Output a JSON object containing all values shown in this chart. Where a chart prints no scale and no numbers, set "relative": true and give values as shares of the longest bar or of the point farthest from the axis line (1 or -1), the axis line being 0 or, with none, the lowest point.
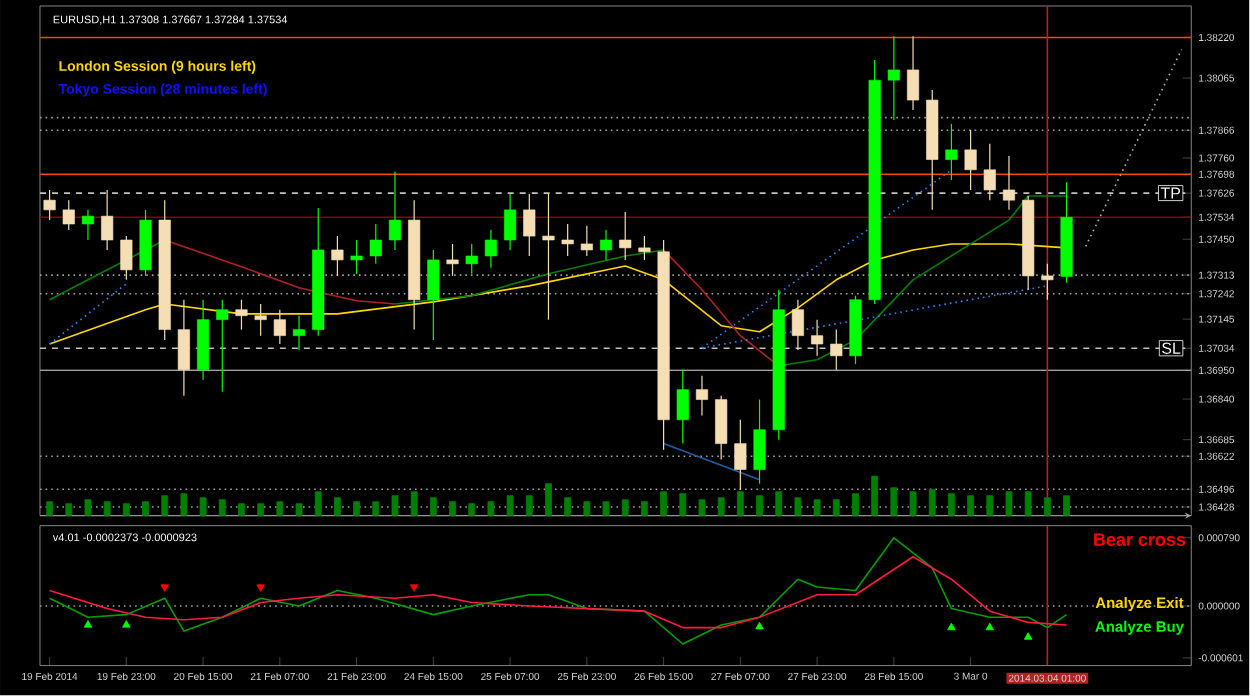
{
  "chart_data": [
    {
      "type": "candlestick",
      "title": "EURUSD,H1 1.37308 1.37667 1.37284 1.37534",
      "annotations": [
        "London Session (9 hours left)",
        "Tokyo Session (28 minutes left)"
      ],
      "categories": [
        "19 Feb 2014",
        null,
        null,
        null,
        "19 Feb 23:00",
        null,
        null,
        null,
        "20 Feb 15:00",
        null,
        null,
        null,
        "21 Feb 07:00",
        null,
        null,
        null,
        "21 Feb 23:00",
        null,
        null,
        null,
        "24 Feb 15:00",
        null,
        null,
        null,
        "25 Feb 07:00",
        null,
        null,
        null,
        "25 Feb 23:00",
        null,
        null,
        null,
        "26 Feb 15:00",
        null,
        null,
        null,
        "27 Feb 07:00",
        null,
        null,
        null,
        "27 Feb 23:00",
        null,
        null,
        null,
        "28 Feb 15:00",
        null,
        null,
        null,
        "3 Mar 0",
        null,
        null,
        null,
        "2014.03.04 01:00",
        null,
        null,
        null,
        null,
        null,
        null,
        null
      ],
      "ohlc": [
        [
          1.37599,
          1.37638,
          1.37523,
          1.37562
        ],
        [
          1.37562,
          1.37599,
          1.37485,
          1.37508
        ],
        [
          1.37508,
          1.37562,
          1.37447,
          1.37538
        ],
        [
          1.37538,
          1.37638,
          1.37409,
          1.37447
        ],
        [
          1.37447,
          1.37462,
          1.37295,
          1.37333
        ],
        [
          1.37333,
          1.37562,
          1.3731,
          1.37523
        ],
        [
          1.37523,
          1.37599,
          1.37065,
          1.37105
        ],
        [
          1.37105,
          1.37219,
          1.36853,
          1.36952
        ],
        [
          1.36952,
          1.37219,
          1.36914,
          1.37143
        ],
        [
          1.37143,
          1.37219,
          1.36868,
          1.37181
        ],
        [
          1.37181,
          1.37219,
          1.37105,
          1.37158
        ],
        [
          1.37158,
          1.37203,
          1.37082,
          1.37143
        ],
        [
          1.37143,
          1.37181,
          1.3705,
          1.37082
        ],
        [
          1.37082,
          1.37158,
          1.37027,
          1.37105
        ],
        [
          1.37105,
          1.37569,
          1.37082,
          1.37409
        ],
        [
          1.37409,
          1.37462,
          1.3731,
          1.37371
        ],
        [
          1.37371,
          1.37447,
          1.37318,
          1.37386
        ],
        [
          1.37386,
          1.37508,
          1.37356,
          1.37447
        ],
        [
          1.37447,
          1.37707,
          1.37409,
          1.37523
        ],
        [
          1.37523,
          1.37599,
          1.37105,
          1.37219
        ],
        [
          1.37219,
          1.37409,
          1.37065,
          1.37371
        ],
        [
          1.37371,
          1.37432,
          1.3731,
          1.37356
        ],
        [
          1.37356,
          1.37432,
          1.37318,
          1.37386
        ],
        [
          1.37386,
          1.37485,
          1.37341,
          1.37447
        ],
        [
          1.37447,
          1.37623,
          1.37409,
          1.37562
        ],
        [
          1.37562,
          1.37623,
          1.37386,
          1.37462
        ],
        [
          1.37462,
          1.37623,
          1.37143,
          1.37447
        ],
        [
          1.37447,
          1.37508,
          1.37386,
          1.37432
        ],
        [
          1.37432,
          1.37501,
          1.37386,
          1.37409
        ],
        [
          1.37409,
          1.37485,
          1.37371,
          1.37447
        ],
        [
          1.37447,
          1.37554,
          1.37371,
          1.37417
        ],
        [
          1.37417,
          1.37462,
          1.37371,
          1.37402
        ],
        [
          1.37402,
          1.37447,
          1.36647,
          1.36761
        ],
        [
          1.36761,
          1.36952,
          1.3667,
          1.36876
        ],
        [
          1.36876,
          1.36929,
          1.36777,
          1.36838
        ],
        [
          1.36838,
          1.36853,
          1.36609,
          1.3667
        ],
        [
          1.3667,
          1.36761,
          1.36494,
          1.36571
        ],
        [
          1.36571,
          1.36838,
          1.36517,
          1.36723
        ],
        [
          1.36723,
          1.37257,
          1.36685,
          1.37181
        ],
        [
          1.37181,
          1.37219,
          1.37027,
          1.37082
        ],
        [
          1.37082,
          1.37143,
          1.37005,
          1.3705
        ],
        [
          1.3705,
          1.37105,
          1.36952,
          1.37005
        ],
        [
          1.37005,
          1.37234,
          1.36974,
          1.37219
        ],
        [
          1.37219,
          1.38134,
          1.37203,
          1.38057
        ],
        [
          1.38057,
          1.38225,
          1.37905,
          1.38096
        ],
        [
          1.38096,
          1.38225,
          1.37943,
          1.37981
        ],
        [
          1.37981,
          1.38019,
          1.37562,
          1.37754
        ],
        [
          1.37754,
          1.3789,
          1.37676,
          1.37791
        ],
        [
          1.37791,
          1.37867,
          1.37638,
          1.37715
        ],
        [
          1.37715,
          1.37814,
          1.37599,
          1.37638
        ],
        [
          1.37638,
          1.37768,
          1.37562,
          1.37599
        ],
        [
          1.37599,
          1.37615,
          1.37257,
          1.3731
        ],
        [
          1.3731,
          1.37356,
          1.37219,
          1.37295
        ],
        [
          1.37308,
          1.37667,
          1.37284,
          1.37534
        ],
        null,
        null,
        null,
        null,
        null,
        null
      ],
      "series": [
        {
          "type": "line",
          "color": "#ffd700",
          "values": [
            1.3705,
            null,
            null,
            null,
            null,
            1.37181,
            1.37203,
            null,
            null,
            null,
            1.37165,
            null,
            null,
            null,
            null,
            1.37165,
            null,
            null,
            null,
            null,
            1.37211,
            null,
            null,
            null,
            null,
            1.37272,
            null,
            null,
            null,
            null,
            1.37348,
            null,
            1.37295,
            null,
            null,
            1.3712,
            null,
            1.37097,
            null,
            1.37188,
            null,
            1.37295,
            null,
            1.37371,
            null,
            1.37409,
            null,
            1.37432,
            null,
            null,
            1.37432,
            null,
            null,
            1.37417,
            null,
            null,
            null,
            null,
            null,
            null
          ]
        },
        {
          "type": "line",
          "color": "#008000",
          "values": [
            1.37219,
            null,
            1.37295,
            null,
            null,
            1.37409,
            1.37447,
            null,
            null,
            null,
            null,
            null,
            null,
            null,
            null,
            null,
            null,
            null,
            null,
            null,
            null,
            null,
            null,
            null,
            null,
            null,
            null,
            null,
            null,
            null,
            null,
            null,
            null,
            null,
            null,
            null,
            null,
            null,
            null,
            null,
            null,
            null,
            null,
            null,
            null,
            null,
            null,
            null,
            null,
            null,
            null,
            null,
            null,
            null,
            null,
            null,
            null,
            null,
            null,
            null
          ]
        },
        {
          "type": "line",
          "color": "#b22222",
          "values": [
            null,
            null,
            null,
            null,
            null,
            null,
            1.37447,
            null,
            null,
            null,
            1.37345,
            null,
            null,
            1.37265,
            null,
            null,
            1.37215,
            null,
            1.37203,
            null,
            null,
            null,
            null,
            null,
            null,
            null,
            null,
            null,
            null,
            null,
            null,
            null,
            null,
            null,
            null,
            null,
            null,
            null,
            null,
            null,
            null,
            null,
            null,
            null,
            null,
            null,
            null,
            null,
            null,
            null,
            null,
            null,
            null,
            null,
            null,
            null,
            null,
            null,
            null,
            null
          ]
        },
        {
          "type": "line",
          "color": "#008000",
          "values": [
            null,
            null,
            null,
            null,
            null,
            null,
            null,
            null,
            null,
            null,
            null,
            null,
            null,
            null,
            null,
            null,
            null,
            null,
            1.37203,
            null,
            null,
            null,
            1.37234,
            null,
            null,
            null,
            1.37318,
            null,
            null,
            null,
            1.37386,
            null,
            1.37409,
            null,
            null,
            null,
            null,
            null,
            null,
            null,
            null,
            null,
            null,
            null,
            null,
            null,
            null,
            null,
            null,
            null,
            null,
            null,
            null,
            null,
            null,
            null,
            null,
            null,
            null,
            null
          ]
        },
        {
          "type": "line",
          "color": "#b22222",
          "values": [
            null,
            null,
            null,
            null,
            null,
            null,
            null,
            null,
            null,
            null,
            null,
            null,
            null,
            null,
            null,
            null,
            null,
            null,
            null,
            null,
            null,
            null,
            null,
            null,
            null,
            null,
            null,
            null,
            null,
            null,
            null,
            null,
            1.37409,
            null,
            1.37257,
            null,
            1.37082,
            null,
            1.36967,
            null,
            null,
            null,
            null,
            null,
            null,
            null,
            null,
            null,
            null,
            null,
            null,
            null,
            null,
            null,
            null,
            null,
            null,
            null,
            null,
            null
          ]
        },
        {
          "type": "line",
          "color": "#008000",
          "values": [
            null,
            null,
            null,
            null,
            null,
            null,
            null,
            null,
            null,
            null,
            null,
            null,
            null,
            null,
            null,
            null,
            null,
            null,
            null,
            null,
            null,
            null,
            null,
            null,
            null,
            null,
            null,
            null,
            null,
            null,
            null,
            null,
            null,
            null,
            null,
            null,
            null,
            null,
            1.36967,
            null,
            1.3699,
            null,
            1.37066,
            null,
            null,
            1.37295,
            null,
            null,
            1.37432,
            null,
            1.37523,
            1.37615,
            null,
            1.37615,
            null,
            null,
            null,
            null,
            null,
            null
          ]
        },
        {
          "type": "line",
          "color": "#1e90ff",
          "line_style": "dotted",
          "values": [
            1.3705,
            null,
            null,
            null,
            1.3728,
            null,
            null,
            null,
            null,
            null,
            null,
            null,
            null,
            null,
            null,
            null,
            null,
            null,
            null,
            null,
            null,
            null,
            null,
            null,
            null,
            null,
            null,
            null,
            null,
            null,
            null,
            null,
            null,
            null,
            null,
            null,
            null,
            null,
            null,
            null,
            null,
            null,
            null,
            null,
            null,
            null,
            null,
            null,
            null,
            null,
            null,
            null,
            null,
            null,
            null,
            null,
            null,
            null,
            null,
            null
          ]
        },
        {
          "type": "line",
          "color": "#1e90ff",
          "line_style": "dotted",
          "values": [
            null,
            null,
            null,
            null,
            null,
            null,
            null,
            null,
            null,
            null,
            null,
            null,
            null,
            null,
            null,
            null,
            null,
            null,
            null,
            null,
            null,
            null,
            null,
            null,
            null,
            null,
            null,
            null,
            null,
            null,
            null,
            null,
            null,
            null,
            1.37035,
            null,
            null,
            null,
            null,
            null,
            null,
            null,
            null,
            null,
            null,
            null,
            null,
            null,
            null,
            null,
            null,
            null,
            1.37272,
            null,
            null,
            null,
            null,
            null,
            null,
            null
          ]
        },
        {
          "type": "line",
          "color": "#1e90ff",
          "line_style": "dotted",
          "values": [
            null,
            null,
            null,
            null,
            null,
            null,
            null,
            null,
            null,
            null,
            null,
            null,
            null,
            null,
            null,
            null,
            null,
            null,
            null,
            null,
            null,
            null,
            null,
            null,
            null,
            null,
            null,
            null,
            null,
            null,
            null,
            null,
            null,
            null,
            1.37035,
            null,
            null,
            null,
            null,
            null,
            null,
            null,
            null,
            null,
            null,
            null,
            null,
            1.37714,
            null,
            null,
            null,
            null,
            null,
            null,
            null,
            null,
            null,
            null,
            null,
            null
          ]
        },
        {
          "type": "line",
          "color": "#1e5fa0",
          "line_style": "solid",
          "values": [
            null,
            null,
            null,
            null,
            null,
            null,
            null,
            null,
            null,
            null,
            null,
            null,
            null,
            null,
            null,
            null,
            null,
            null,
            null,
            null,
            null,
            null,
            null,
            null,
            null,
            null,
            null,
            null,
            null,
            null,
            null,
            null,
            1.3667,
            null,
            null,
            null,
            null,
            1.36532,
            null,
            null,
            null,
            null,
            null,
            null,
            null,
            null,
            null,
            null,
            null,
            null,
            null,
            null,
            null,
            null,
            null,
            null,
            null,
            null,
            null,
            null
          ]
        },
        {
          "type": "line",
          "color": "#a0b4b4",
          "line_style": "dotted",
          "values": [
            null,
            null,
            null,
            null,
            null,
            null,
            null,
            null,
            null,
            null,
            null,
            null,
            null,
            null,
            null,
            null,
            null,
            null,
            null,
            null,
            null,
            null,
            null,
            null,
            null,
            null,
            null,
            null,
            null,
            null,
            null,
            null,
            null,
            null,
            null,
            null,
            null,
            null,
            null,
            null,
            null,
            null,
            null,
            null,
            null,
            null,
            null,
            null,
            null,
            null,
            null,
            null,
            null,
            null,
            1.37423,
            null,
            null,
            null,
            null,
            1.38174
          ]
        }
      ],
      "ylim": [
        1.36395,
        1.3834
      ],
      "yticks": [
        {
          "value": 1.3822,
          "label": "1.38220"
        },
        1.38065,
        1.37866,
        {
          "value": 1.3776,
          "label": "1.37760"
        },
        1.37698,
        1.37626,
        1.37534,
        {
          "value": 1.3745,
          "label": "1.37450"
        },
        1.37313,
        1.37242,
        1.37145,
        1.37034,
        {
          "value": 1.3695,
          "label": "1.36950"
        },
        {
          "value": 1.3684,
          "label": "1.36840"
        },
        1.36685,
        1.36622,
        1.36496,
        1.36428
      ],
      "tick_labels": "y",
      "ref_lines": [
        {
          "axis": "y",
          "value": 1.3822,
          "color": "#ff4500",
          "line_style": "solid"
        },
        {
          "axis": "y",
          "value": 1.37914,
          "color": "#a0a0a0",
          "line_style": "dotted"
        },
        {
          "axis": "y",
          "value": 1.37866,
          "color": "#a0a0a0",
          "line_style": "dotted"
        },
        {
          "axis": "y",
          "value": 1.37698,
          "color": "#ff4500",
          "line_style": "solid"
        },
        {
          "axis": "y",
          "value": 1.37626,
          "color": "#c0c0c0",
          "line_style": "dashed",
          "label": "TP"
        },
        {
          "axis": "y",
          "value": 1.37534,
          "color": "#8b0000",
          "line_style": "solid"
        },
        {
          "axis": "y",
          "value": 1.37313,
          "color": "#a0a0a0",
          "line_style": "dotted"
        },
        {
          "axis": "y",
          "value": 1.37242,
          "color": "#a0a0a0",
          "line_style": "dotted"
        },
        {
          "axis": "y",
          "value": 1.37034,
          "color": "#c0c0c0",
          "line_style": "dashed",
          "label": "SL"
        },
        {
          "axis": "y",
          "value": 1.3695,
          "color": "#a0a0a0",
          "line_style": "solid"
        },
        {
          "axis": "y",
          "value": 1.36622,
          "color": "#a0a0a0",
          "line_style": "dotted"
        },
        {
          "axis": "y",
          "value": 1.36496,
          "color": "#a0a0a0",
          "line_style": "dotted"
        },
        {
          "axis": "y",
          "value": 1.36428,
          "color": "#a0a0a0",
          "line_style": "dotted"
        },
        {
          "axis": "x",
          "value": "2014.03.04 01:00",
          "color": "#b22222",
          "line_style": "solid"
        }
      ]
    },
    {
      "type": "bar",
      "relative": true,
      "color": "#008000",
      "categories": [
        null,
        null,
        null,
        null,
        null,
        null,
        null,
        null,
        null,
        null,
        null,
        null,
        null,
        null,
        null,
        null,
        null,
        null,
        null,
        null,
        null,
        null,
        null,
        null,
        null,
        null,
        null,
        null,
        null,
        null,
        null,
        null,
        null,
        null,
        null,
        null,
        null,
        null,
        null,
        null,
        null,
        null,
        null,
        null,
        null,
        null,
        null,
        null,
        null,
        null,
        null,
        null,
        null,
        null,
        null,
        null,
        null,
        null,
        null,
        null
      ],
      "values": [
        0.35,
        0.3,
        0.4,
        0.35,
        0.3,
        0.35,
        0.5,
        0.55,
        0.45,
        0.4,
        0.3,
        0.3,
        0.35,
        0.3,
        0.6,
        0.45,
        0.35,
        0.35,
        0.5,
        0.6,
        0.45,
        0.35,
        0.3,
        0.35,
        0.5,
        0.5,
        0.8,
        0.45,
        0.35,
        0.35,
        0.4,
        0.35,
        0.6,
        0.55,
        0.4,
        0.45,
        0.6,
        0.5,
        0.6,
        0.45,
        0.4,
        0.4,
        0.55,
        1.0,
        0.7,
        0.6,
        0.65,
        0.55,
        0.5,
        0.5,
        0.6,
        0.6,
        0.45,
        0.5,
        null,
        null,
        null,
        null,
        null,
        null
      ]
    },
    {
      "type": "line",
      "title": "v4.01 -0.0002373 -0.0000923",
      "annotations": [
        "Bear cross",
        "Analyze Exit",
        "Analyze Buy"
      ],
      "categories": [
        "19 Feb 2014",
        null,
        null,
        null,
        "19 Feb 23:00",
        null,
        null,
        null,
        "20 Feb 15:00",
        null,
        null,
        null,
        "21 Feb 07:00",
        null,
        null,
        null,
        "21 Feb 23:00",
        null,
        null,
        null,
        "24 Feb 15:00",
        null,
        null,
        null,
        "25 Feb 07:00",
        null,
        null,
        null,
        "25 Feb 23:00",
        null,
        null,
        null,
        "26 Feb 15:00",
        null,
        null,
        null,
        "27 Feb 07:00",
        null,
        null,
        null,
        "27 Feb 23:00",
        null,
        null,
        null,
        "28 Feb 15:00",
        null,
        null,
        null,
        "3 Mar 0",
        null,
        null,
        null,
        "2014.03.04 01:00",
        null,
        null,
        null,
        null,
        null,
        null,
        null
      ],
      "series": [
        {
          "color": "#00a000",
          "values": [
            9e-05,
            null,
            -0.00013,
            null,
            -0.0001,
            null,
            9e-05,
            -0.00029,
            null,
            -0.00013,
            null,
            9e-05,
            null,
            0,
            null,
            0.00018,
            null,
            9e-05,
            null,
            null,
            -0.0001,
            null,
            0,
            null,
            null,
            0.00013,
            0.00013,
            null,
            -3e-05,
            null,
            null,
            -6e-05,
            null,
            -0.00044,
            null,
            -0.00022,
            null,
            -0.00013,
            null,
            0.00031,
            0.00022,
            null,
            0.00018,
            null,
            0.00079,
            null,
            0.00044,
            -3e-05,
            null,
            -0.00013,
            null,
            -0.00013,
            -0.00025,
            -0.0001,
            null,
            null,
            null,
            null,
            null,
            null
          ]
        },
        {
          "color": "#ff1a40",
          "values": [
            0.00018,
            null,
            4e-05,
            -3e-05,
            null,
            -0.00013,
            null,
            -0.00016,
            null,
            -0.00013,
            null,
            4e-05,
            null,
            9e-05,
            null,
            0.00013,
            null,
            null,
            9e-05,
            null,
            0.00013,
            null,
            4e-05,
            null,
            null,
            0,
            null,
            null,
            -3e-05,
            null,
            null,
            -6e-05,
            null,
            -0.00025,
            null,
            -0.00025,
            null,
            -0.00013,
            null,
            null,
            0.00013,
            null,
            0.00013,
            null,
            null,
            0.00057,
            null,
            0.00031,
            null,
            -6e-05,
            null,
            -0.00019,
            null,
            -0.00022,
            null,
            null,
            null,
            null,
            null,
            null
          ]
        },
        {
          "type": "scatter",
          "marker": "triangle",
          "color": "#00ff00",
          "values": [
            null,
            null,
            -0.00022,
            null,
            -0.00022,
            null,
            null,
            null,
            null,
            null,
            null,
            null,
            null,
            null,
            null,
            null,
            null,
            null,
            null,
            null,
            null,
            null,
            null,
            null,
            null,
            null,
            null,
            null,
            null,
            null,
            null,
            null,
            null,
            null,
            null,
            null,
            null,
            -0.00024,
            null,
            null,
            null,
            null,
            null,
            null,
            null,
            null,
            null,
            -0.00025,
            null,
            -0.00025,
            null,
            -0.00036,
            null,
            null,
            null,
            null,
            null,
            null,
            null,
            null
          ]
        },
        {
          "type": "scatter",
          "marker": "triangle",
          "color": "#ff0000",
          "values": [
            null,
            null,
            null,
            null,
            null,
            null,
            0.00022,
            null,
            null,
            null,
            null,
            0.00022,
            null,
            null,
            null,
            null,
            null,
            null,
            null,
            0.00022,
            null,
            null,
            null,
            null,
            null,
            null,
            null,
            null,
            null,
            null,
            null,
            null,
            null,
            null,
            null,
            null,
            null,
            null,
            null,
            null,
            null,
            null,
            null,
            null,
            null,
            null,
            null,
            null,
            null,
            null,
            null,
            null,
            null,
            null,
            null,
            null,
            null,
            null,
            null,
            null
          ]
        }
      ],
      "ylim": [
        -0.00069,
        0.00093
      ],
      "yticks": [
        {
          "value": 0.00079,
          "label": "0.000790"
        },
        {
          "value": 0,
          "label": "0.000000"
        },
        {
          "value": -0.000601,
          "label": "-0.000601"
        }
      ],
      "ref_lines": [
        {
          "axis": "y",
          "value": 0,
          "color": "#a0a0a0",
          "line_style": "dotted"
        },
        {
          "axis": "x",
          "value": "2014.03.04 01:00",
          "color": "#b22222",
          "line_style": "solid"
        }
      ]
    }
  ]
}
